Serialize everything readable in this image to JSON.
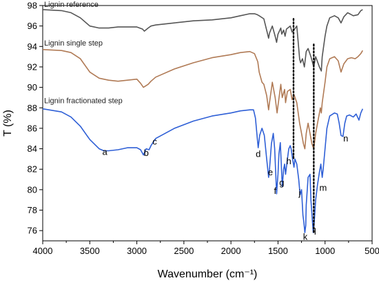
{
  "chart_data": {
    "type": "line",
    "xlabel": "Wavenumber (cm⁻¹)",
    "ylabel": "T (%)",
    "xlim": [
      4000,
      500
    ],
    "ylim": [
      75,
      98
    ],
    "x_ticks": [
      4000,
      3500,
      3000,
      2500,
      2000,
      1500,
      1000,
      500
    ],
    "y_ticks": [
      76,
      78,
      80,
      82,
      84,
      86,
      88,
      90,
      92,
      94,
      96,
      98
    ],
    "grid": false,
    "series_labels_inline": true,
    "series": [
      {
        "name": "Lignin reference",
        "color": "#555555",
        "points": [
          [
            4000,
            97.6
          ],
          [
            3800,
            97.5
          ],
          [
            3700,
            97.3
          ],
          [
            3600,
            96.8
          ],
          [
            3500,
            96.0
          ],
          [
            3400,
            95.8
          ],
          [
            3300,
            95.8
          ],
          [
            3200,
            95.9
          ],
          [
            3100,
            95.9
          ],
          [
            3000,
            95.9
          ],
          [
            2940,
            95.7
          ],
          [
            2920,
            95.5
          ],
          [
            2880,
            95.8
          ],
          [
            2850,
            96.0
          ],
          [
            2800,
            96.1
          ],
          [
            2600,
            96.3
          ],
          [
            2400,
            96.5
          ],
          [
            2200,
            96.6
          ],
          [
            2000,
            96.8
          ],
          [
            1900,
            97.0
          ],
          [
            1800,
            97.2
          ],
          [
            1750,
            97.2
          ],
          [
            1720,
            97.1
          ],
          [
            1700,
            97.0
          ],
          [
            1650,
            96.7
          ],
          [
            1610,
            95.2
          ],
          [
            1600,
            94.8
          ],
          [
            1590,
            95.3
          ],
          [
            1560,
            96.0
          ],
          [
            1530,
            95.0
          ],
          [
            1515,
            94.4
          ],
          [
            1500,
            95.2
          ],
          [
            1470,
            95.8
          ],
          [
            1460,
            95.2
          ],
          [
            1440,
            95.6
          ],
          [
            1425,
            95.0
          ],
          [
            1410,
            95.7
          ],
          [
            1370,
            96.0
          ],
          [
            1350,
            95.4
          ],
          [
            1330,
            95.6
          ],
          [
            1300,
            96.0
          ],
          [
            1270,
            92.8
          ],
          [
            1260,
            92.4
          ],
          [
            1240,
            92.8
          ],
          [
            1220,
            92.0
          ],
          [
            1200,
            93.5
          ],
          [
            1180,
            93.8
          ],
          [
            1150,
            93.0
          ],
          [
            1120,
            92.0
          ],
          [
            1100,
            93.0
          ],
          [
            1080,
            92.5
          ],
          [
            1060,
            92.0
          ],
          [
            1040,
            91.6
          ],
          [
            1030,
            93.0
          ],
          [
            1000,
            95.0
          ],
          [
            980,
            96.0
          ],
          [
            950,
            96.8
          ],
          [
            900,
            97.0
          ],
          [
            860,
            96.8
          ],
          [
            830,
            96.3
          ],
          [
            800,
            96.9
          ],
          [
            760,
            97.3
          ],
          [
            700,
            97.0
          ],
          [
            650,
            97.1
          ],
          [
            620,
            97.5
          ],
          [
            600,
            97.6
          ]
        ]
      },
      {
        "name": "Lignin single step",
        "color": "#b07a55",
        "points": [
          [
            4000,
            93.7
          ],
          [
            3800,
            93.6
          ],
          [
            3700,
            93.4
          ],
          [
            3600,
            92.8
          ],
          [
            3500,
            91.5
          ],
          [
            3400,
            90.9
          ],
          [
            3300,
            90.7
          ],
          [
            3200,
            90.6
          ],
          [
            3100,
            90.7
          ],
          [
            3000,
            90.8
          ],
          [
            2960,
            90.4
          ],
          [
            2930,
            90.0
          ],
          [
            2880,
            90.3
          ],
          [
            2850,
            90.6
          ],
          [
            2800,
            91.0
          ],
          [
            2600,
            91.8
          ],
          [
            2400,
            92.4
          ],
          [
            2200,
            92.9
          ],
          [
            2000,
            93.2
          ],
          [
            1900,
            93.4
          ],
          [
            1800,
            93.5
          ],
          [
            1750,
            93.3
          ],
          [
            1715,
            92.5
          ],
          [
            1700,
            91.5
          ],
          [
            1670,
            90.5
          ],
          [
            1650,
            90.3
          ],
          [
            1620,
            89.2
          ],
          [
            1600,
            87.8
          ],
          [
            1590,
            88.5
          ],
          [
            1560,
            90.5
          ],
          [
            1530,
            89.0
          ],
          [
            1510,
            87.5
          ],
          [
            1500,
            88.2
          ],
          [
            1470,
            90.3
          ],
          [
            1455,
            89.0
          ],
          [
            1430,
            89.8
          ],
          [
            1420,
            88.5
          ],
          [
            1400,
            89.6
          ],
          [
            1370,
            89.8
          ],
          [
            1350,
            88.8
          ],
          [
            1330,
            89.3
          ],
          [
            1300,
            88.5
          ],
          [
            1270,
            86.5
          ],
          [
            1250,
            85.5
          ],
          [
            1230,
            84.5
          ],
          [
            1215,
            84.0
          ],
          [
            1200,
            85.5
          ],
          [
            1180,
            86.5
          ],
          [
            1160,
            85.5
          ],
          [
            1140,
            84.5
          ],
          [
            1120,
            84.0
          ],
          [
            1100,
            85.5
          ],
          [
            1080,
            86.5
          ],
          [
            1050,
            88.0
          ],
          [
            1040,
            87.5
          ],
          [
            1030,
            88.5
          ],
          [
            1000,
            90.5
          ],
          [
            980,
            92.0
          ],
          [
            950,
            92.8
          ],
          [
            900,
            93.0
          ],
          [
            860,
            92.6
          ],
          [
            830,
            91.5
          ],
          [
            800,
            92.3
          ],
          [
            760,
            92.8
          ],
          [
            720,
            92.9
          ],
          [
            680,
            92.8
          ],
          [
            650,
            93.0
          ],
          [
            620,
            93.3
          ],
          [
            600,
            93.6
          ]
        ]
      },
      {
        "name": "Lignin fractionated step",
        "color": "#2e5fd6",
        "points": [
          [
            4000,
            87.9
          ],
          [
            3800,
            87.6
          ],
          [
            3700,
            87.1
          ],
          [
            3600,
            86.2
          ],
          [
            3500,
            84.9
          ],
          [
            3400,
            84.0
          ],
          [
            3350,
            83.8
          ],
          [
            3300,
            83.8
          ],
          [
            3200,
            83.9
          ],
          [
            3100,
            84.1
          ],
          [
            3000,
            84.1
          ],
          [
            2960,
            83.9
          ],
          [
            2930,
            83.4
          ],
          [
            2900,
            84.0
          ],
          [
            2870,
            83.9
          ],
          [
            2850,
            84.3
          ],
          [
            2800,
            85.0
          ],
          [
            2600,
            86.0
          ],
          [
            2400,
            86.7
          ],
          [
            2200,
            87.2
          ],
          [
            2000,
            87.5
          ],
          [
            1900,
            87.7
          ],
          [
            1800,
            87.8
          ],
          [
            1760,
            87.8
          ],
          [
            1740,
            87.0
          ],
          [
            1720,
            85.0
          ],
          [
            1710,
            84.1
          ],
          [
            1695,
            85.3
          ],
          [
            1670,
            86.0
          ],
          [
            1645,
            85.3
          ],
          [
            1620,
            83.0
          ],
          [
            1600,
            81.2
          ],
          [
            1590,
            82.0
          ],
          [
            1570,
            84.5
          ],
          [
            1550,
            85.5
          ],
          [
            1535,
            84.0
          ],
          [
            1515,
            79.6
          ],
          [
            1500,
            81.5
          ],
          [
            1490,
            83.5
          ],
          [
            1475,
            84.6
          ],
          [
            1465,
            82.5
          ],
          [
            1455,
            80.3
          ],
          [
            1440,
            82.0
          ],
          [
            1430,
            82.5
          ],
          [
            1420,
            81.5
          ],
          [
            1400,
            83.0
          ],
          [
            1385,
            84.0
          ],
          [
            1370,
            84.3
          ],
          [
            1360,
            84.0
          ],
          [
            1345,
            83.0
          ],
          [
            1330,
            82.2
          ],
          [
            1320,
            83.0
          ],
          [
            1300,
            82.5
          ],
          [
            1280,
            81.0
          ],
          [
            1265,
            79.5
          ],
          [
            1250,
            80.0
          ],
          [
            1235,
            77.5
          ],
          [
            1225,
            76.8
          ],
          [
            1215,
            75.8
          ],
          [
            1205,
            76.5
          ],
          [
            1200,
            78.5
          ],
          [
            1180,
            81.2
          ],
          [
            1160,
            81.5
          ],
          [
            1150,
            79.0
          ],
          [
            1135,
            77.0
          ],
          [
            1125,
            75.8
          ],
          [
            1115,
            76.8
          ],
          [
            1100,
            79.0
          ],
          [
            1080,
            80.5
          ],
          [
            1060,
            81.7
          ],
          [
            1045,
            82.5
          ],
          [
            1030,
            81.2
          ],
          [
            1020,
            82.0
          ],
          [
            1000,
            84.0
          ],
          [
            980,
            86.0
          ],
          [
            950,
            87.2
          ],
          [
            900,
            87.5
          ],
          [
            870,
            87.4
          ],
          [
            850,
            86.5
          ],
          [
            830,
            85.3
          ],
          [
            810,
            85.2
          ],
          [
            790,
            86.5
          ],
          [
            770,
            87.2
          ],
          [
            740,
            87.3
          ],
          [
            700,
            87.1
          ],
          [
            670,
            87.4
          ],
          [
            640,
            86.8
          ],
          [
            620,
            87.5
          ],
          [
            600,
            87.9
          ]
        ]
      }
    ],
    "peak_labels": [
      {
        "text": "a",
        "x": 3340,
        "y": 83.4
      },
      {
        "text": "b",
        "x": 2900,
        "y": 83.3
      },
      {
        "text": "c",
        "x": 2810,
        "y": 84.4
      },
      {
        "text": "d",
        "x": 1710,
        "y": 83.2
      },
      {
        "text": "e",
        "x": 1580,
        "y": 81.4
      },
      {
        "text": "f",
        "x": 1530,
        "y": 79.6
      },
      {
        "text": "g",
        "x": 1460,
        "y": 80.4
      },
      {
        "text": "h",
        "x": 1385,
        "y": 82.5
      },
      {
        "text": "i",
        "x": 1335,
        "y": 83.1
      },
      {
        "text": "j",
        "x": 1270,
        "y": 79.4
      },
      {
        "text": "k",
        "x": 1210,
        "y": 75.1
      },
      {
        "text": "l",
        "x": 1105,
        "y": 75.6
      },
      {
        "text": "m",
        "x": 1020,
        "y": 79.9
      },
      {
        "text": "n",
        "x": 780,
        "y": 84.7
      }
    ],
    "markers": [
      {
        "type": "dotted-vertical",
        "x": 1335,
        "y_top": 96.7,
        "y_bottom": 83.0
      },
      {
        "type": "dotted-vertical",
        "x": 1120,
        "y_top": 94.2,
        "y_bottom": 75.8
      }
    ]
  }
}
